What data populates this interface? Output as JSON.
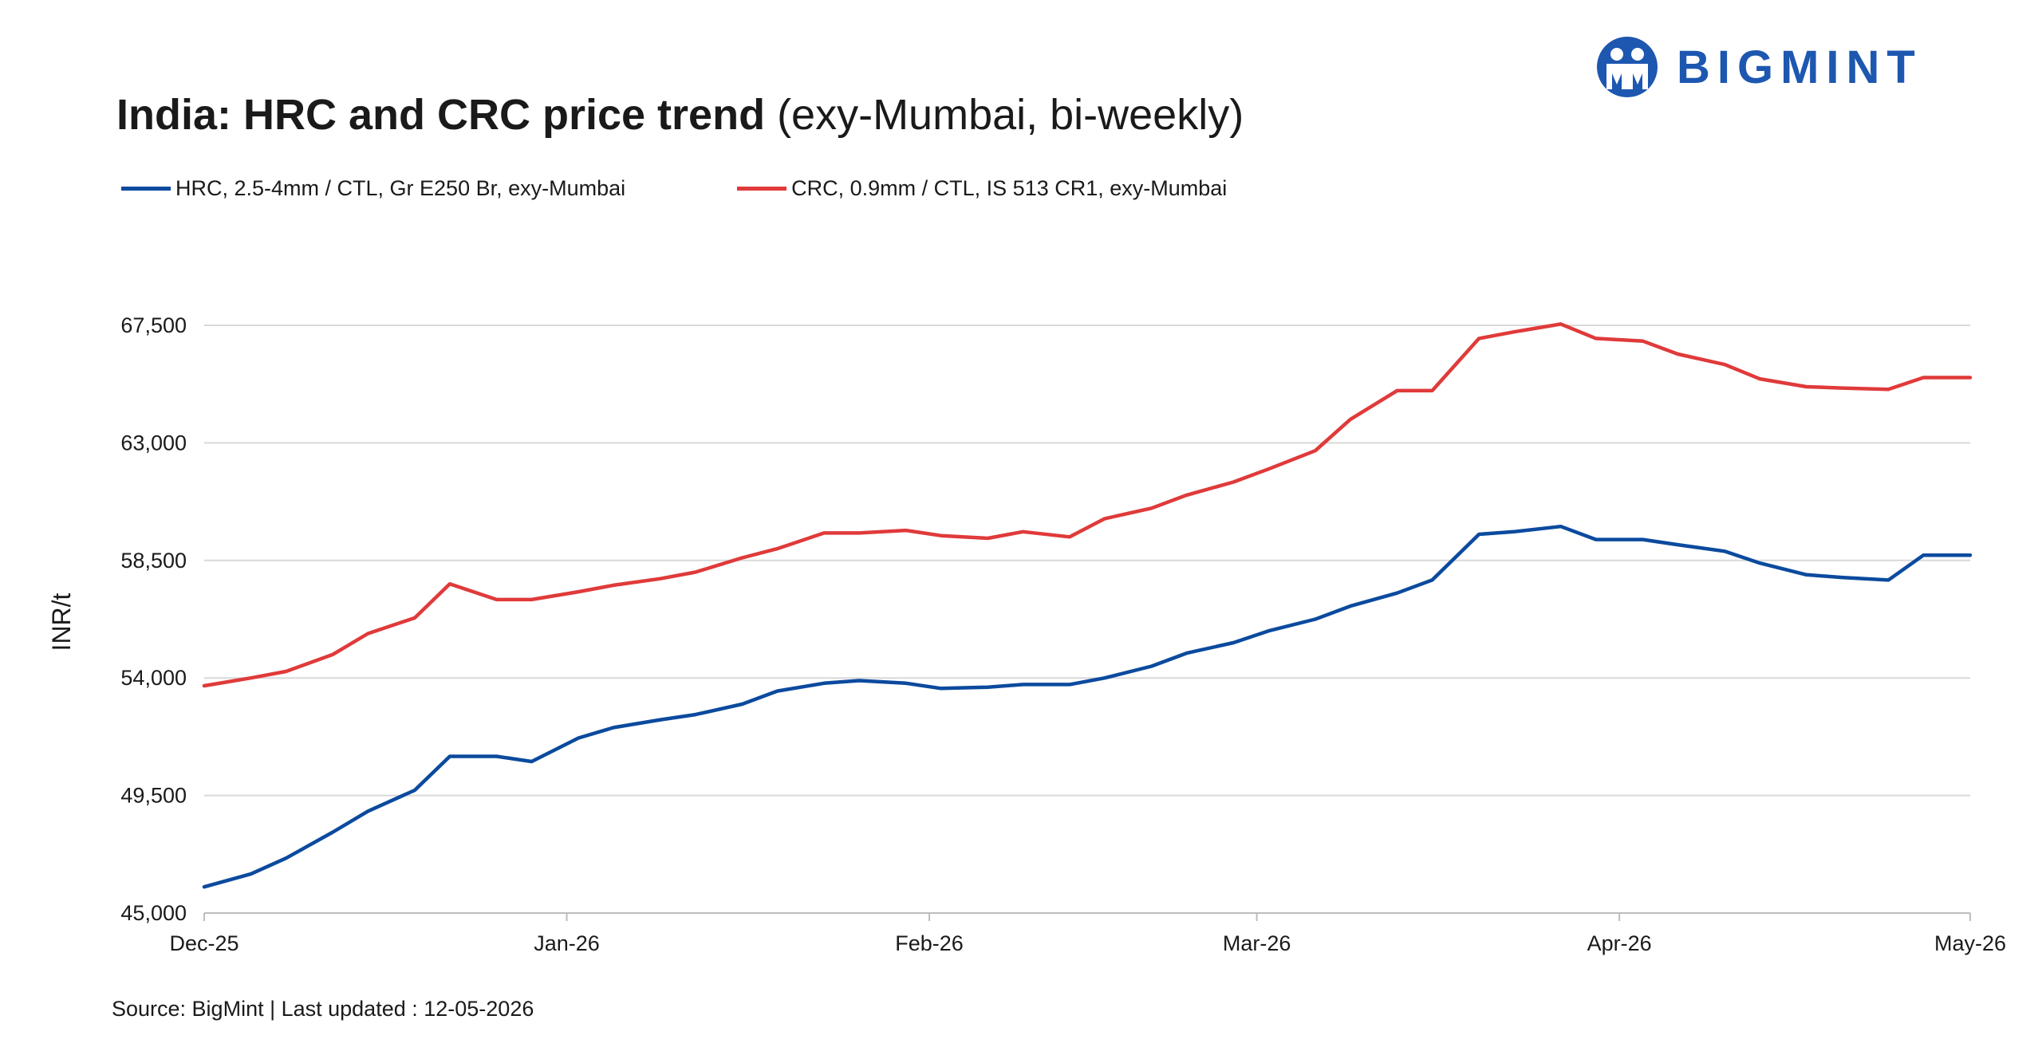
{
  "title": {
    "bold": "India: HRC and CRC price trend",
    "regular": "(exy-Mumbai, bi-weekly)"
  },
  "brand": {
    "name": "BIGMINT",
    "color": "#1d57b0"
  },
  "source": "Source: BigMint | Last updated : 12-05-2026",
  "chart_data": {
    "type": "line",
    "title": "India: HRC and CRC price trend (exy-Mumbai, bi-weekly)",
    "xlabel": "",
    "ylabel": "INR/t",
    "ylim": [
      45000,
      67500
    ],
    "yticks": [
      45000,
      49500,
      54000,
      58500,
      63000,
      67500
    ],
    "ytick_labels": [
      "45,000",
      "49,500",
      "54,000",
      "58,500",
      "63,000",
      "67,500"
    ],
    "xlim": [
      "2025-12-01",
      "2026-05-01"
    ],
    "xticks": [
      "2025-12-01",
      "2026-01-01",
      "2026-02-01",
      "2026-03-01",
      "2026-04-01",
      "2026-05-01"
    ],
    "xtick_labels": [
      "Dec-25",
      "Jan-26",
      "Feb-26",
      "Mar-26",
      "Apr-26",
      "May-26"
    ],
    "grid": "horizontal",
    "legend": "top-left",
    "x": [
      "2025-12-01",
      "2025-12-05",
      "2025-12-08",
      "2025-12-12",
      "2025-12-15",
      "2025-12-19",
      "2025-12-22",
      "2025-12-26",
      "2025-12-29",
      "2026-01-02",
      "2026-01-05",
      "2026-01-09",
      "2026-01-12",
      "2026-01-16",
      "2026-01-19",
      "2026-01-23",
      "2026-01-26",
      "2026-01-30",
      "2026-02-02",
      "2026-02-06",
      "2026-02-09",
      "2026-02-13",
      "2026-02-16",
      "2026-02-20",
      "2026-02-23",
      "2026-02-27",
      "2026-03-02",
      "2026-03-06",
      "2026-03-09",
      "2026-03-13",
      "2026-03-16",
      "2026-03-20",
      "2026-03-23",
      "2026-03-27",
      "2026-03-30",
      "2026-04-03",
      "2026-04-06",
      "2026-04-10",
      "2026-04-13",
      "2026-04-17",
      "2026-04-20",
      "2026-04-24",
      "2026-04-27",
      "2026-05-01"
    ],
    "series": [
      {
        "name": "HRC, 2.5-4mm / CTL, Gr E250 Br, exy-Mumbai",
        "color": "#0b4a9e",
        "values": [
          46000,
          46500,
          47100,
          48100,
          48900,
          49700,
          51000,
          51000,
          50800,
          51700,
          52100,
          52400,
          52600,
          53000,
          53500,
          53800,
          53900,
          53800,
          53600,
          53650,
          53750,
          53750,
          54000,
          54450,
          54950,
          55350,
          55800,
          56250,
          56750,
          57250,
          57750,
          59500,
          59600,
          59800,
          59300,
          59300,
          59100,
          58850,
          58400,
          57950,
          57850,
          57750,
          58700,
          58700
        ]
      },
      {
        "name": "CRC, 0.9mm / CTL, IS 513 CR1, exy-Mumbai",
        "color": "#e03a3a",
        "values": [
          53700,
          54000,
          54250,
          54900,
          55700,
          56300,
          57600,
          57000,
          57000,
          57300,
          57550,
          57800,
          58050,
          58600,
          58950,
          59550,
          59550,
          59650,
          59450,
          59350,
          59600,
          59400,
          60100,
          60500,
          61000,
          61500,
          62000,
          62700,
          63900,
          65000,
          65000,
          67000,
          67250,
          67550,
          67000,
          66900,
          66400,
          66000,
          65450,
          65150,
          65100,
          65050,
          65500,
          65500
        ]
      }
    ]
  }
}
